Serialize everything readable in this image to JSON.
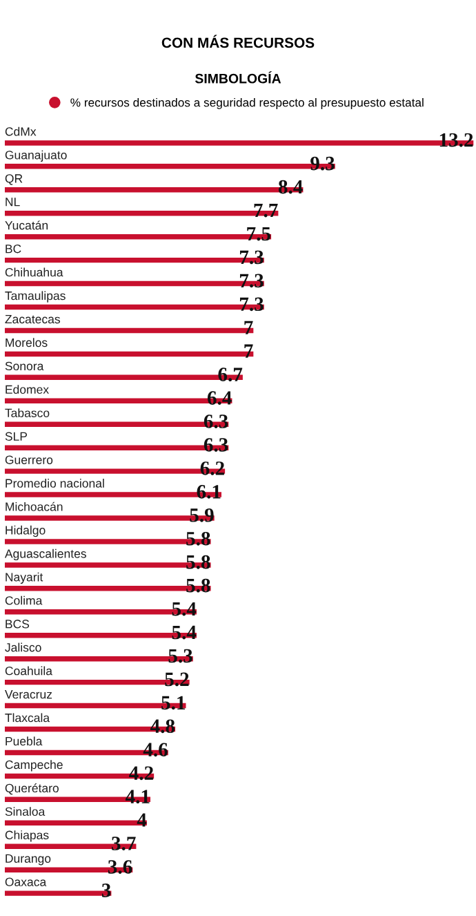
{
  "chart_data": {
    "type": "bar",
    "orientation": "horizontal",
    "title": "CON MÁS RECURSOS",
    "subtitle": "SIMBOLOGÍA",
    "categories": [
      "CdMx",
      "Guanajuato",
      "QR",
      "NL",
      "Yucatán",
      "BC",
      "Chihuahua",
      "Tamaulipas",
      "Zacatecas",
      "Morelos",
      "Sonora",
      "Edomex",
      "Tabasco",
      "SLP",
      "Guerrero",
      "Promedio nacional",
      "Michoacán",
      "Hidalgo",
      "Aguascalientes",
      "Nayarit",
      "Colima",
      "BCS",
      "Jalisco",
      "Coahuila",
      "Veracruz",
      "Tlaxcala",
      "Puebla",
      "Campeche",
      "Querétaro",
      "Sinaloa",
      "Chiapas",
      "Durango",
      "Oaxaca"
    ],
    "series": [
      {
        "name": "% recursos destinados a seguridad respecto al presupuesto estatal",
        "color": "#c8102e",
        "values": [
          13.2,
          9.3,
          8.4,
          7.7,
          7.5,
          7.3,
          7.3,
          7.3,
          7,
          7,
          6.7,
          6.4,
          6.3,
          6.3,
          6.2,
          6.1,
          5.9,
          5.8,
          5.8,
          5.8,
          5.4,
          5.4,
          5.3,
          5.2,
          5.1,
          4.8,
          4.6,
          4.2,
          4.1,
          4,
          3.7,
          3.6,
          3
        ]
      }
    ],
    "data_labels": true,
    "legend": "top left",
    "tick_labels": "y"
  }
}
